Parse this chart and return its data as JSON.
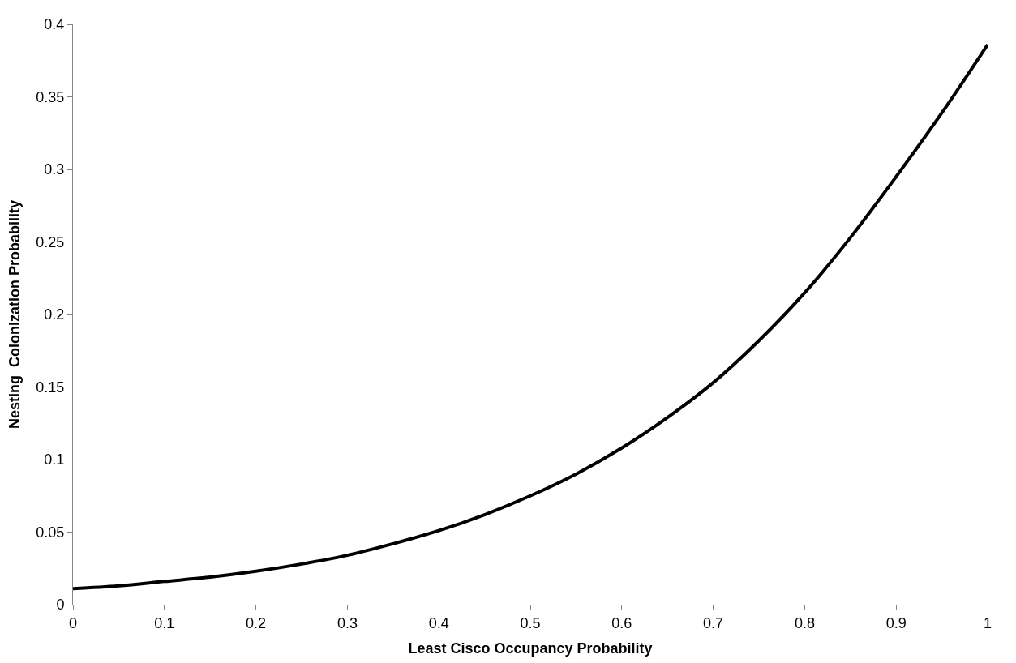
{
  "chart_data": {
    "type": "line",
    "xlabel": "Least Cisco Occupancy Probability",
    "ylabel": "Nesting  Colonization Probability",
    "x": [
      0,
      0.05,
      0.1,
      0.15,
      0.2,
      0.25,
      0.3,
      0.35,
      0.4,
      0.45,
      0.5,
      0.55,
      0.6,
      0.65,
      0.7,
      0.75,
      0.8,
      0.85,
      0.9,
      0.95,
      1.0
    ],
    "series": [
      {
        "color": "#000000",
        "values": [
          0.011,
          0.013,
          0.016,
          0.019,
          0.023,
          0.028,
          0.034,
          0.042,
          0.051,
          0.062,
          0.075,
          0.09,
          0.108,
          0.129,
          0.153,
          0.182,
          0.215,
          0.253,
          0.295,
          0.339,
          0.386
        ]
      }
    ],
    "xlim": [
      0,
      1
    ],
    "xticks": [
      0,
      0.1,
      0.2,
      0.3,
      0.4,
      0.5,
      0.6,
      0.7,
      0.8,
      0.9,
      1
    ],
    "ylim": [
      0,
      0.4
    ],
    "yticks": [
      0,
      0.05,
      0.1,
      0.15,
      0.2,
      0.25,
      0.3,
      0.35,
      0.4
    ],
    "legend": false,
    "marker": "none",
    "line_style": "solid"
  }
}
